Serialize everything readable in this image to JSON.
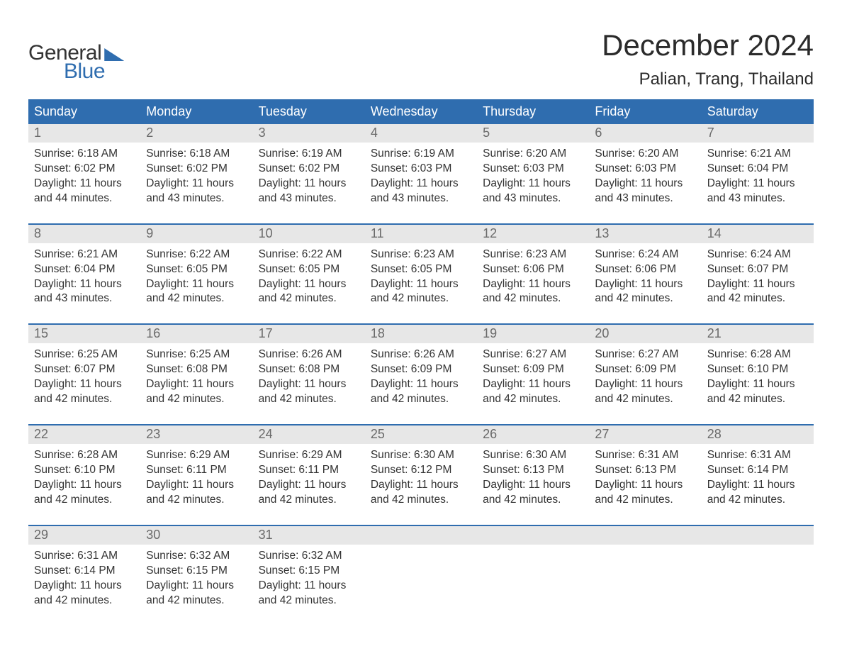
{
  "brand": {
    "word1": "General",
    "word2": "Blue"
  },
  "title": "December 2024",
  "location": "Palian, Trang, Thailand",
  "colors": {
    "header_bg": "#2f6daf",
    "header_text": "#ffffff",
    "daynum_bg": "#e7e7e7",
    "daynum_text": "#6a6a6a",
    "body_text": "#333333",
    "page_bg": "#ffffff",
    "week_border": "#2f6daf"
  },
  "day_names": [
    "Sunday",
    "Monday",
    "Tuesday",
    "Wednesday",
    "Thursday",
    "Friday",
    "Saturday"
  ],
  "weeks": [
    [
      {
        "n": "1",
        "sr": "Sunrise: 6:18 AM",
        "ss": "Sunset: 6:02 PM",
        "d1": "Daylight: 11 hours",
        "d2": "and 44 minutes."
      },
      {
        "n": "2",
        "sr": "Sunrise: 6:18 AM",
        "ss": "Sunset: 6:02 PM",
        "d1": "Daylight: 11 hours",
        "d2": "and 43 minutes."
      },
      {
        "n": "3",
        "sr": "Sunrise: 6:19 AM",
        "ss": "Sunset: 6:02 PM",
        "d1": "Daylight: 11 hours",
        "d2": "and 43 minutes."
      },
      {
        "n": "4",
        "sr": "Sunrise: 6:19 AM",
        "ss": "Sunset: 6:03 PM",
        "d1": "Daylight: 11 hours",
        "d2": "and 43 minutes."
      },
      {
        "n": "5",
        "sr": "Sunrise: 6:20 AM",
        "ss": "Sunset: 6:03 PM",
        "d1": "Daylight: 11 hours",
        "d2": "and 43 minutes."
      },
      {
        "n": "6",
        "sr": "Sunrise: 6:20 AM",
        "ss": "Sunset: 6:03 PM",
        "d1": "Daylight: 11 hours",
        "d2": "and 43 minutes."
      },
      {
        "n": "7",
        "sr": "Sunrise: 6:21 AM",
        "ss": "Sunset: 6:04 PM",
        "d1": "Daylight: 11 hours",
        "d2": "and 43 minutes."
      }
    ],
    [
      {
        "n": "8",
        "sr": "Sunrise: 6:21 AM",
        "ss": "Sunset: 6:04 PM",
        "d1": "Daylight: 11 hours",
        "d2": "and 43 minutes."
      },
      {
        "n": "9",
        "sr": "Sunrise: 6:22 AM",
        "ss": "Sunset: 6:05 PM",
        "d1": "Daylight: 11 hours",
        "d2": "and 42 minutes."
      },
      {
        "n": "10",
        "sr": "Sunrise: 6:22 AM",
        "ss": "Sunset: 6:05 PM",
        "d1": "Daylight: 11 hours",
        "d2": "and 42 minutes."
      },
      {
        "n": "11",
        "sr": "Sunrise: 6:23 AM",
        "ss": "Sunset: 6:05 PM",
        "d1": "Daylight: 11 hours",
        "d2": "and 42 minutes."
      },
      {
        "n": "12",
        "sr": "Sunrise: 6:23 AM",
        "ss": "Sunset: 6:06 PM",
        "d1": "Daylight: 11 hours",
        "d2": "and 42 minutes."
      },
      {
        "n": "13",
        "sr": "Sunrise: 6:24 AM",
        "ss": "Sunset: 6:06 PM",
        "d1": "Daylight: 11 hours",
        "d2": "and 42 minutes."
      },
      {
        "n": "14",
        "sr": "Sunrise: 6:24 AM",
        "ss": "Sunset: 6:07 PM",
        "d1": "Daylight: 11 hours",
        "d2": "and 42 minutes."
      }
    ],
    [
      {
        "n": "15",
        "sr": "Sunrise: 6:25 AM",
        "ss": "Sunset: 6:07 PM",
        "d1": "Daylight: 11 hours",
        "d2": "and 42 minutes."
      },
      {
        "n": "16",
        "sr": "Sunrise: 6:25 AM",
        "ss": "Sunset: 6:08 PM",
        "d1": "Daylight: 11 hours",
        "d2": "and 42 minutes."
      },
      {
        "n": "17",
        "sr": "Sunrise: 6:26 AM",
        "ss": "Sunset: 6:08 PM",
        "d1": "Daylight: 11 hours",
        "d2": "and 42 minutes."
      },
      {
        "n": "18",
        "sr": "Sunrise: 6:26 AM",
        "ss": "Sunset: 6:09 PM",
        "d1": "Daylight: 11 hours",
        "d2": "and 42 minutes."
      },
      {
        "n": "19",
        "sr": "Sunrise: 6:27 AM",
        "ss": "Sunset: 6:09 PM",
        "d1": "Daylight: 11 hours",
        "d2": "and 42 minutes."
      },
      {
        "n": "20",
        "sr": "Sunrise: 6:27 AM",
        "ss": "Sunset: 6:09 PM",
        "d1": "Daylight: 11 hours",
        "d2": "and 42 minutes."
      },
      {
        "n": "21",
        "sr": "Sunrise: 6:28 AM",
        "ss": "Sunset: 6:10 PM",
        "d1": "Daylight: 11 hours",
        "d2": "and 42 minutes."
      }
    ],
    [
      {
        "n": "22",
        "sr": "Sunrise: 6:28 AM",
        "ss": "Sunset: 6:10 PM",
        "d1": "Daylight: 11 hours",
        "d2": "and 42 minutes."
      },
      {
        "n": "23",
        "sr": "Sunrise: 6:29 AM",
        "ss": "Sunset: 6:11 PM",
        "d1": "Daylight: 11 hours",
        "d2": "and 42 minutes."
      },
      {
        "n": "24",
        "sr": "Sunrise: 6:29 AM",
        "ss": "Sunset: 6:11 PM",
        "d1": "Daylight: 11 hours",
        "d2": "and 42 minutes."
      },
      {
        "n": "25",
        "sr": "Sunrise: 6:30 AM",
        "ss": "Sunset: 6:12 PM",
        "d1": "Daylight: 11 hours",
        "d2": "and 42 minutes."
      },
      {
        "n": "26",
        "sr": "Sunrise: 6:30 AM",
        "ss": "Sunset: 6:13 PM",
        "d1": "Daylight: 11 hours",
        "d2": "and 42 minutes."
      },
      {
        "n": "27",
        "sr": "Sunrise: 6:31 AM",
        "ss": "Sunset: 6:13 PM",
        "d1": "Daylight: 11 hours",
        "d2": "and 42 minutes."
      },
      {
        "n": "28",
        "sr": "Sunrise: 6:31 AM",
        "ss": "Sunset: 6:14 PM",
        "d1": "Daylight: 11 hours",
        "d2": "and 42 minutes."
      }
    ],
    [
      {
        "n": "29",
        "sr": "Sunrise: 6:31 AM",
        "ss": "Sunset: 6:14 PM",
        "d1": "Daylight: 11 hours",
        "d2": "and 42 minutes."
      },
      {
        "n": "30",
        "sr": "Sunrise: 6:32 AM",
        "ss": "Sunset: 6:15 PM",
        "d1": "Daylight: 11 hours",
        "d2": "and 42 minutes."
      },
      {
        "n": "31",
        "sr": "Sunrise: 6:32 AM",
        "ss": "Sunset: 6:15 PM",
        "d1": "Daylight: 11 hours",
        "d2": "and 42 minutes."
      },
      {
        "n": "",
        "sr": "",
        "ss": "",
        "d1": "",
        "d2": ""
      },
      {
        "n": "",
        "sr": "",
        "ss": "",
        "d1": "",
        "d2": ""
      },
      {
        "n": "",
        "sr": "",
        "ss": "",
        "d1": "",
        "d2": ""
      },
      {
        "n": "",
        "sr": "",
        "ss": "",
        "d1": "",
        "d2": ""
      }
    ]
  ]
}
